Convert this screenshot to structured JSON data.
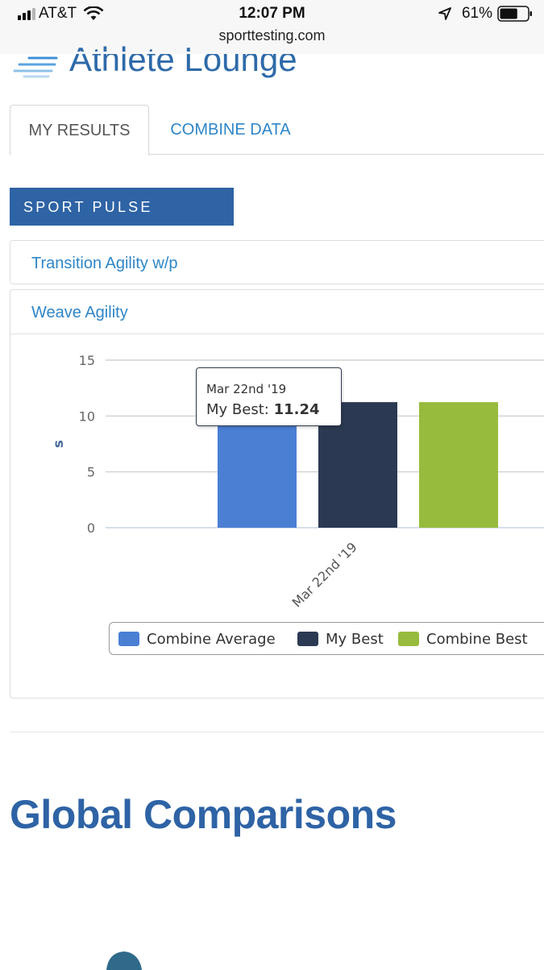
{
  "status_bar": {
    "carrier": "AT&T",
    "time": "12:07 PM",
    "url": "sporttesting.com",
    "battery": "61%",
    "battery_level": 0.61,
    "icons": [
      "signal-icon",
      "wifi-icon",
      "location-arrow-icon",
      "battery-icon"
    ]
  },
  "header": {
    "title": "Athlete Lounge",
    "logo_icon": "speed-lines-logo"
  },
  "tabs": [
    {
      "label": "MY RESULTS",
      "active": true
    },
    {
      "label": "COMBINE DATA",
      "active": false
    }
  ],
  "section": {
    "title": "SPORT PULSE"
  },
  "accordion": [
    {
      "title": "Transition Agility w/p",
      "expanded": false
    },
    {
      "title": "Weave Agility",
      "expanded": true
    }
  ],
  "chart_data": {
    "type": "bar",
    "categories": [
      "Mar 22nd '19"
    ],
    "series": [
      {
        "name": "Combine Average",
        "values": [
          11.24
        ],
        "color": "#4a7fd4"
      },
      {
        "name": "My Best",
        "values": [
          11.24
        ],
        "color": "#2b3a52"
      },
      {
        "name": "Combine Best",
        "values": [
          11.24
        ],
        "color": "#97bb3d"
      }
    ],
    "ylabel": "s",
    "ylim": [
      0,
      15
    ],
    "yticks": [
      0,
      5,
      10,
      15
    ],
    "grid": true,
    "legend_position": "bottom",
    "tooltip": {
      "date": "Mar 22nd '19",
      "label": "My Best:",
      "value": "11.24"
    }
  },
  "global": {
    "title": "Global Comparisons"
  },
  "colors": {
    "accent": "#2e63a5",
    "link": "#2e86c8"
  }
}
